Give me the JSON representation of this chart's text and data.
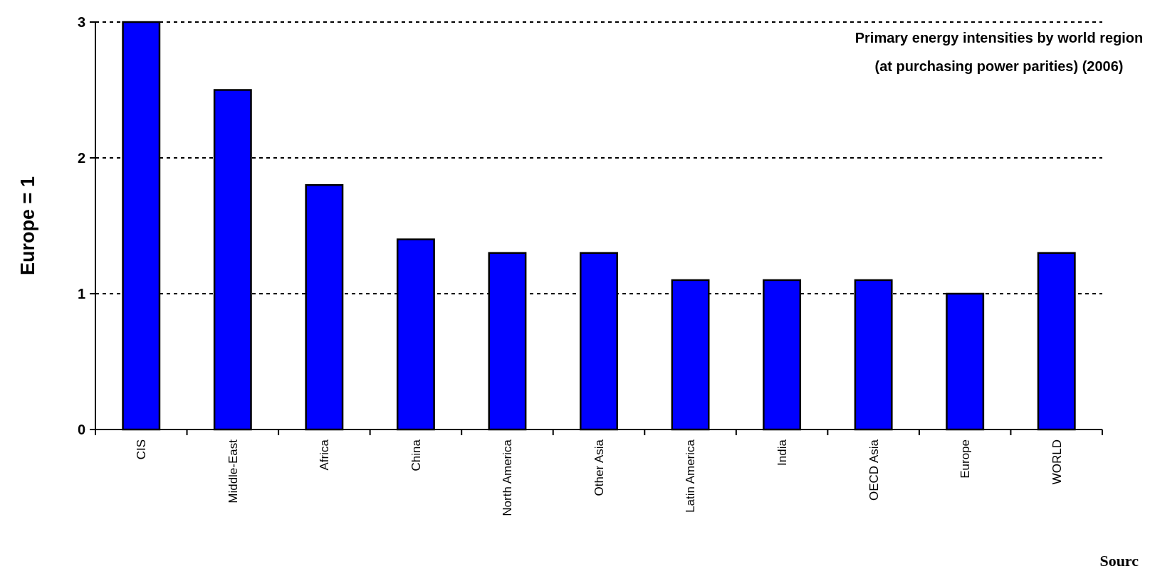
{
  "chart_data": {
    "type": "bar",
    "title": "Primary energy intensities by world region",
    "subtitle": "(at purchasing power parities) (2006)",
    "ylabel": "Europe = 1",
    "annotations": [
      "Sourc"
    ],
    "categories": [
      "CIS",
      "Middle-East",
      "Africa",
      "China",
      "North America",
      "Other Asia",
      "Latin America",
      "India",
      "OECD Asia",
      "Europe",
      "WORLD"
    ],
    "values": [
      3.0,
      2.5,
      1.8,
      1.4,
      1.3,
      1.3,
      1.1,
      1.1,
      1.1,
      1.0,
      1.3
    ],
    "color": "#0000ff",
    "ylim": [
      0,
      3
    ],
    "yticks": [
      0,
      1,
      2,
      3
    ],
    "grid": "y"
  }
}
